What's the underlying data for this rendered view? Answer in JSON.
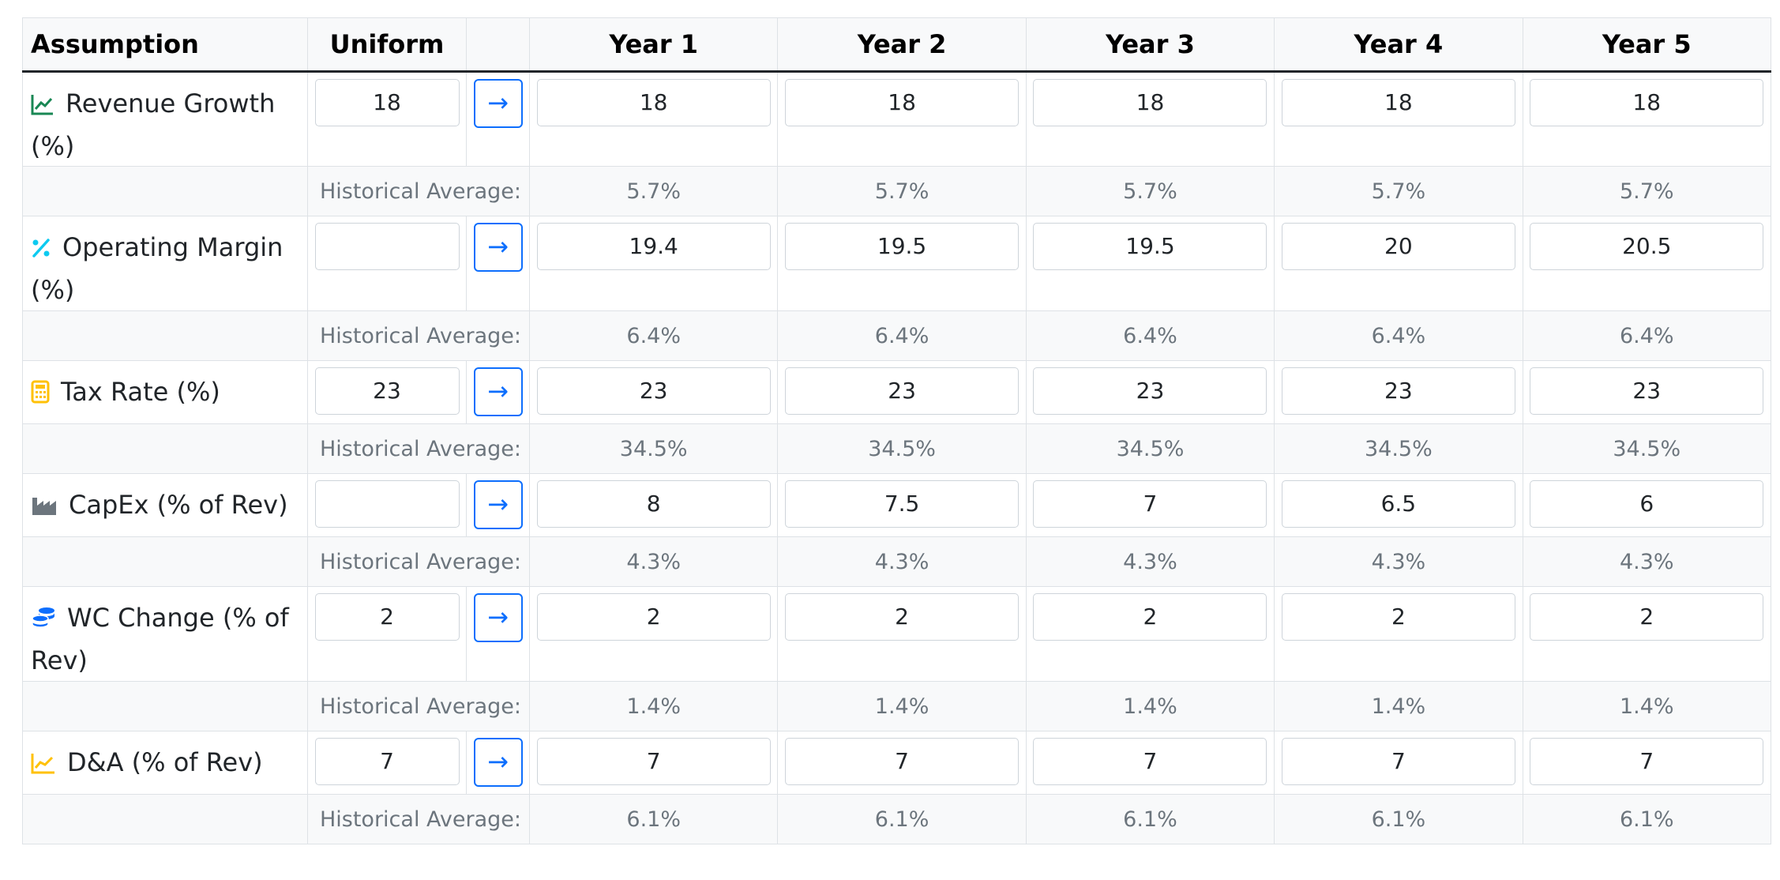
{
  "headers": {
    "assumption": "Assumption",
    "uniform": "Uniform",
    "years": [
      "Year 1",
      "Year 2",
      "Year 3",
      "Year 4",
      "Year 5"
    ]
  },
  "apply_glyph": "→",
  "historical_label": "Historical Average:",
  "rows": [
    {
      "label": "Revenue Growth (%)",
      "icon": "line-chart-icon",
      "icon_color": "#198754",
      "uniform": "18",
      "years": [
        "18",
        "18",
        "18",
        "18",
        "18"
      ],
      "historical": [
        "5.7%",
        "5.7%",
        "5.7%",
        "5.7%",
        "5.7%"
      ]
    },
    {
      "label": "Operating Margin (%)",
      "icon": "percent-icon",
      "icon_color": "#0dcaf0",
      "uniform": "",
      "years": [
        "19.4",
        "19.5",
        "19.5",
        "20",
        "20.5"
      ],
      "historical": [
        "6.4%",
        "6.4%",
        "6.4%",
        "6.4%",
        "6.4%"
      ]
    },
    {
      "label": "Tax Rate (%)",
      "icon": "calculator-icon",
      "icon_color": "#ffc107",
      "uniform": "23",
      "years": [
        "23",
        "23",
        "23",
        "23",
        "23"
      ],
      "historical": [
        "34.5%",
        "34.5%",
        "34.5%",
        "34.5%",
        "34.5%"
      ]
    },
    {
      "label": "CapEx (% of Rev)",
      "icon": "industry-icon",
      "icon_color": "#6c757d",
      "uniform": "",
      "years": [
        "8",
        "7.5",
        "7",
        "6.5",
        "6"
      ],
      "historical": [
        "4.3%",
        "4.3%",
        "4.3%",
        "4.3%",
        "4.3%"
      ]
    },
    {
      "label": "WC Change (% of Rev)",
      "icon": "coins-icon",
      "icon_color": "#0d6efd",
      "uniform": "2",
      "years": [
        "2",
        "2",
        "2",
        "2",
        "2"
      ],
      "historical": [
        "1.4%",
        "1.4%",
        "1.4%",
        "1.4%",
        "1.4%"
      ]
    },
    {
      "label": "D&A (% of Rev)",
      "icon": "area-chart-icon",
      "icon_color": "#ffc107",
      "uniform": "7",
      "years": [
        "7",
        "7",
        "7",
        "7",
        "7"
      ],
      "historical": [
        "6.1%",
        "6.1%",
        "6.1%",
        "6.1%",
        "6.1%"
      ]
    }
  ]
}
